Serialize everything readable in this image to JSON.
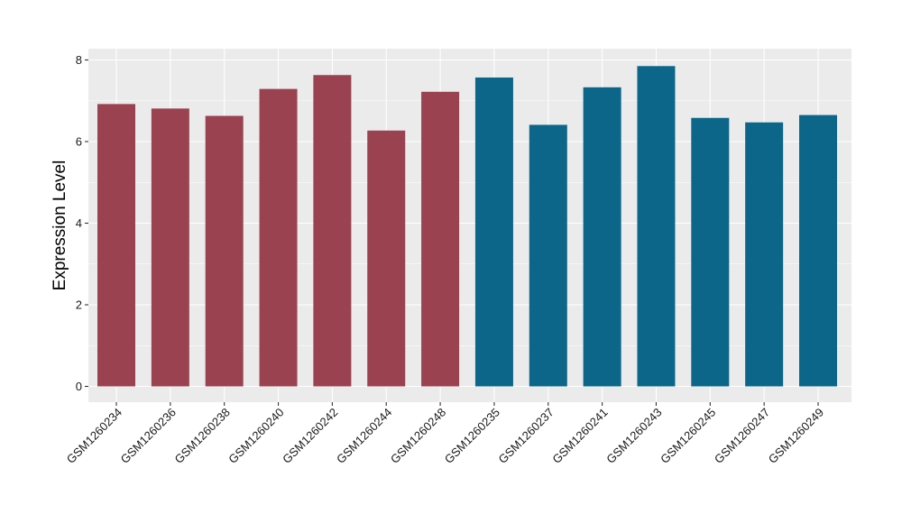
{
  "chart_data": {
    "type": "bar",
    "title": "",
    "xlabel": "",
    "ylabel": "Expression Level",
    "ylim": [
      0,
      8.25
    ],
    "yticks": [
      0,
      2,
      4,
      6,
      8
    ],
    "grid": true,
    "legend": "none",
    "categories": [
      "GSM1260234",
      "GSM1260236",
      "GSM1260238",
      "GSM1260240",
      "GSM1260242",
      "GSM1260244",
      "GSM1260248",
      "GSM1260235",
      "GSM1260237",
      "GSM1260241",
      "GSM1260243",
      "GSM1260245",
      "GSM1260247",
      "GSM1260249"
    ],
    "values": [
      6.92,
      6.81,
      6.63,
      7.29,
      7.63,
      6.27,
      7.22,
      7.57,
      6.41,
      7.33,
      7.85,
      6.58,
      6.47,
      6.65
    ],
    "bar_groups": [
      0,
      0,
      0,
      0,
      0,
      0,
      0,
      1,
      1,
      1,
      1,
      1,
      1,
      1
    ],
    "group_colors": [
      "#9a4250",
      "#0b6689"
    ]
  }
}
